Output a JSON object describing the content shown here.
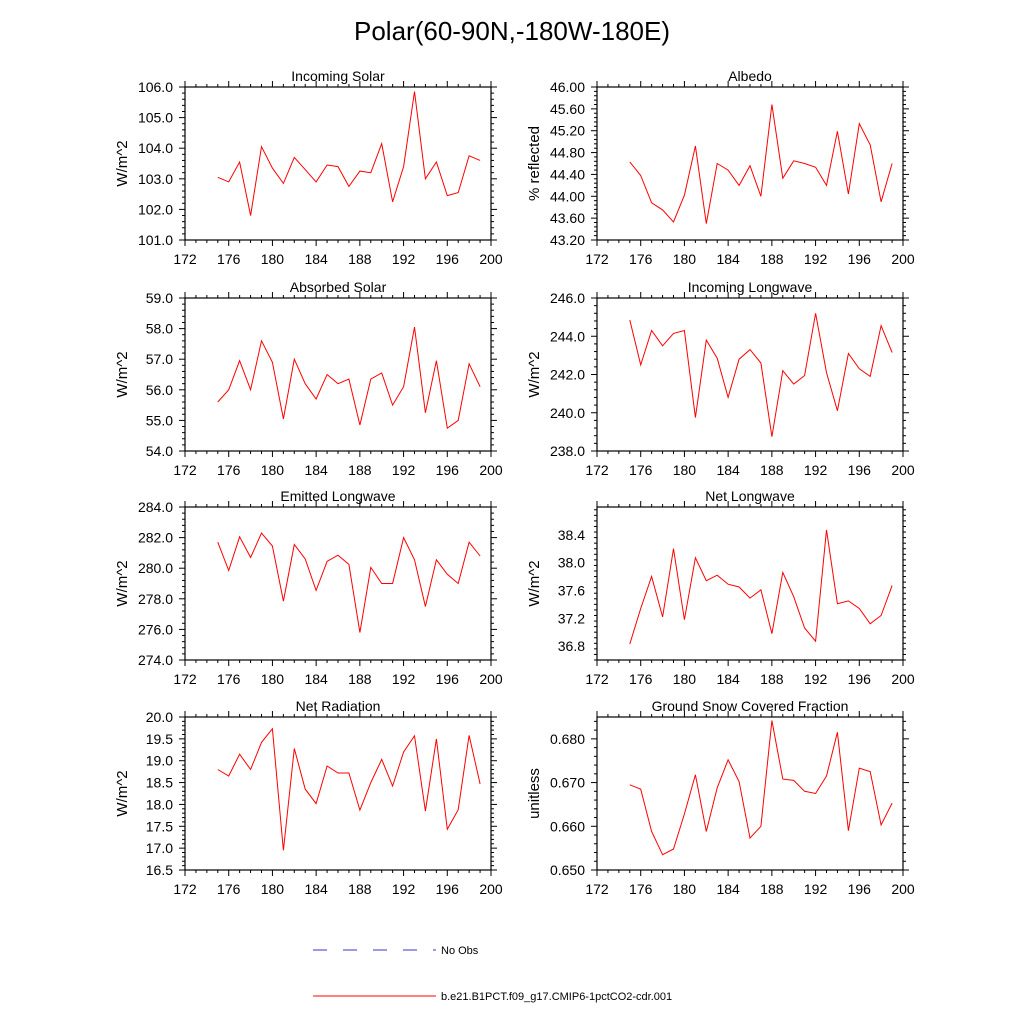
{
  "title": "Polar(60-90N,-180W-180E)",
  "colors": {
    "series": "#ff0000",
    "obs": "#3333cc",
    "axis": "#000000"
  },
  "legend": [
    {
      "label": "No Obs",
      "color": "#3333cc",
      "style": "dashed"
    },
    {
      "label": "b.e21.B1PCT.f09_g17.CMIP6-1pctCO2-cdr.001",
      "color": "#ff0000",
      "style": "solid"
    }
  ],
  "chart_data": [
    {
      "type": "line",
      "title": "Incoming Solar",
      "ylabel": "W/m^2",
      "xlim": [
        172,
        200
      ],
      "ylim": [
        101.0,
        106.0
      ],
      "xticks": [
        172,
        176,
        180,
        184,
        188,
        192,
        196,
        200
      ],
      "yticks": [
        "101.0",
        "102.0",
        "103.0",
        "104.0",
        "105.0",
        "106.0"
      ],
      "x": [
        175,
        176,
        177,
        178,
        179,
        180,
        181,
        182,
        183,
        184,
        185,
        186,
        187,
        188,
        189,
        190,
        191,
        192,
        193,
        194,
        195,
        196,
        197,
        198,
        199
      ],
      "series": [
        {
          "values": [
            103.05,
            102.9,
            103.55,
            101.8,
            104.05,
            103.35,
            102.85,
            103.7,
            103.3,
            102.9,
            103.45,
            103.4,
            102.75,
            103.25,
            103.2,
            104.15,
            102.25,
            103.4,
            105.85,
            103.0,
            103.55,
            102.45,
            102.55,
            103.75,
            103.6
          ]
        }
      ]
    },
    {
      "type": "line",
      "title": "Albedo",
      "ylabel": "% reflected",
      "xlim": [
        172,
        200
      ],
      "ylim": [
        43.2,
        46.0
      ],
      "xticks": [
        172,
        176,
        180,
        184,
        188,
        192,
        196,
        200
      ],
      "yticks": [
        "43.20",
        "43.60",
        "44.00",
        "44.40",
        "44.80",
        "45.20",
        "45.60",
        "46.00"
      ],
      "x": [
        175,
        176,
        177,
        178,
        179,
        180,
        181,
        182,
        183,
        184,
        185,
        186,
        187,
        188,
        189,
        190,
        191,
        192,
        193,
        194,
        195,
        196,
        197,
        198,
        199
      ],
      "series": [
        {
          "values": [
            44.63,
            44.38,
            43.88,
            43.75,
            43.53,
            44.02,
            44.92,
            43.5,
            44.6,
            44.48,
            44.2,
            44.56,
            44.0,
            45.68,
            44.33,
            44.65,
            44.6,
            44.53,
            44.2,
            45.19,
            44.04,
            45.33,
            44.94,
            43.9,
            44.6
          ]
        }
      ]
    },
    {
      "type": "line",
      "title": "Absorbed Solar",
      "ylabel": "W/m^2",
      "xlim": [
        172,
        200
      ],
      "ylim": [
        54.0,
        59.0
      ],
      "xticks": [
        172,
        176,
        180,
        184,
        188,
        192,
        196,
        200
      ],
      "yticks": [
        "54.0",
        "55.0",
        "56.0",
        "57.0",
        "58.0",
        "59.0"
      ],
      "x": [
        175,
        176,
        177,
        178,
        179,
        180,
        181,
        182,
        183,
        184,
        185,
        186,
        187,
        188,
        189,
        190,
        191,
        192,
        193,
        194,
        195,
        196,
        197,
        198,
        199
      ],
      "series": [
        {
          "values": [
            55.6,
            56.0,
            56.95,
            56.0,
            57.6,
            56.9,
            55.05,
            57.0,
            56.2,
            55.7,
            56.5,
            56.2,
            56.35,
            54.85,
            56.35,
            56.55,
            55.5,
            56.1,
            58.05,
            55.25,
            56.95,
            54.75,
            55.0,
            56.85,
            56.1
          ]
        }
      ]
    },
    {
      "type": "line",
      "title": "Incoming Longwave",
      "ylabel": "W/m^2",
      "xlim": [
        172,
        200
      ],
      "ylim": [
        238.0,
        246.0
      ],
      "xticks": [
        172,
        176,
        180,
        184,
        188,
        192,
        196,
        200
      ],
      "yticks": [
        "238.0",
        "240.0",
        "242.0",
        "244.0",
        "246.0"
      ],
      "x": [
        175,
        176,
        177,
        178,
        179,
        180,
        181,
        182,
        183,
        184,
        185,
        186,
        187,
        188,
        189,
        190,
        191,
        192,
        193,
        194,
        195,
        196,
        197,
        198,
        199
      ],
      "series": [
        {
          "values": [
            244.85,
            242.5,
            244.3,
            243.5,
            244.15,
            244.3,
            239.75,
            243.8,
            242.85,
            240.8,
            242.8,
            243.3,
            242.6,
            238.75,
            242.2,
            241.5,
            241.95,
            245.2,
            242.1,
            240.1,
            243.1,
            242.3,
            241.9,
            244.55,
            243.15
          ]
        }
      ]
    },
    {
      "type": "line",
      "title": "Emitted Longwave",
      "ylabel": "W/m^2",
      "xlim": [
        172,
        200
      ],
      "ylim": [
        274.0,
        284.0
      ],
      "xticks": [
        172,
        176,
        180,
        184,
        188,
        192,
        196,
        200
      ],
      "yticks": [
        "274.0",
        "276.0",
        "278.0",
        "280.0",
        "282.0",
        "284.0"
      ],
      "x": [
        175,
        176,
        177,
        178,
        179,
        180,
        181,
        182,
        183,
        184,
        185,
        186,
        187,
        188,
        189,
        190,
        191,
        192,
        193,
        194,
        195,
        196,
        197,
        198,
        199
      ],
      "series": [
        {
          "values": [
            281.7,
            279.85,
            282.05,
            280.7,
            282.3,
            281.45,
            277.85,
            281.55,
            280.6,
            278.55,
            280.45,
            280.85,
            280.25,
            275.8,
            280.05,
            279.0,
            279.0,
            282.0,
            280.55,
            277.5,
            280.55,
            279.6,
            279.0,
            281.7,
            280.8
          ]
        }
      ]
    },
    {
      "type": "line",
      "title": "Net Longwave",
      "ylabel": "W/m^2",
      "xlim": [
        172,
        200
      ],
      "ylim": [
        36.6,
        38.8
      ],
      "xticks": [
        172,
        176,
        180,
        184,
        188,
        192,
        196,
        200
      ],
      "yticks": [
        "36.8",
        "37.2",
        "37.6",
        "38.0",
        "38.4"
      ],
      "x": [
        175,
        176,
        177,
        178,
        179,
        180,
        181,
        182,
        183,
        184,
        185,
        186,
        187,
        188,
        189,
        190,
        191,
        192,
        193,
        194,
        195,
        196,
        197,
        198,
        199
      ],
      "series": [
        {
          "values": [
            36.83,
            37.34,
            37.8,
            37.22,
            38.2,
            37.18,
            38.07,
            37.74,
            37.82,
            37.69,
            37.65,
            37.49,
            37.61,
            36.98,
            37.86,
            37.51,
            37.06,
            36.87,
            38.47,
            37.41,
            37.45,
            37.34,
            37.12,
            37.24,
            37.67
          ]
        }
      ]
    },
    {
      "type": "line",
      "title": "Net Radiation",
      "ylabel": "W/m^2",
      "xlim": [
        172,
        200
      ],
      "ylim": [
        16.5,
        20.0
      ],
      "xticks": [
        172,
        176,
        180,
        184,
        188,
        192,
        196,
        200
      ],
      "yticks": [
        "16.5",
        "17.0",
        "17.5",
        "18.0",
        "18.5",
        "19.0",
        "19.5",
        "20.0"
      ],
      "x": [
        175,
        176,
        177,
        178,
        179,
        180,
        181,
        182,
        183,
        184,
        185,
        186,
        187,
        188,
        189,
        190,
        191,
        192,
        193,
        194,
        195,
        196,
        197,
        198,
        199
      ],
      "series": [
        {
          "values": [
            18.8,
            18.65,
            19.15,
            18.8,
            19.42,
            19.73,
            16.95,
            19.28,
            18.35,
            18.02,
            18.88,
            18.72,
            18.72,
            17.87,
            18.5,
            19.03,
            18.42,
            19.2,
            19.57,
            17.85,
            19.5,
            17.43,
            17.88,
            19.58,
            18.47
          ]
        }
      ]
    },
    {
      "type": "line",
      "title": "Ground Snow Covered Fraction",
      "ylabel": "unitless",
      "xlim": [
        172,
        200
      ],
      "ylim": [
        0.65,
        0.685
      ],
      "xticks": [
        172,
        176,
        180,
        184,
        188,
        192,
        196,
        200
      ],
      "yticks": [
        "0.650",
        "0.660",
        "0.670",
        "0.680"
      ],
      "x": [
        175,
        176,
        177,
        178,
        179,
        180,
        181,
        182,
        183,
        184,
        185,
        186,
        187,
        188,
        189,
        190,
        191,
        192,
        193,
        194,
        195,
        196,
        197,
        198,
        199
      ],
      "series": [
        {
          "values": [
            0.6695,
            0.6685,
            0.6588,
            0.6535,
            0.6548,
            0.6628,
            0.6718,
            0.6588,
            0.6688,
            0.6752,
            0.6702,
            0.6573,
            0.66,
            0.6842,
            0.6708,
            0.6705,
            0.668,
            0.6675,
            0.6715,
            0.6815,
            0.659,
            0.6733,
            0.6725,
            0.6603,
            0.6653
          ]
        }
      ]
    }
  ]
}
